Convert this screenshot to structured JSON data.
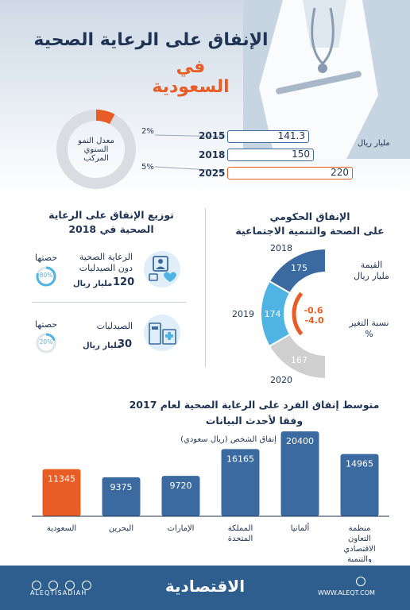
{
  "header": {
    "title_line1": "الإنفاق على الرعاية الصحية",
    "title_line2": "في السعودية"
  },
  "growth": {
    "ring_label": "معدل النمو السنوي المركب",
    "pct_top": "2%",
    "pct_bottom": "5%",
    "unit": "مليار ريال",
    "rows": [
      {
        "year": "2015",
        "value": "141.3"
      },
      {
        "year": "2018",
        "value": "150"
      },
      {
        "year": "2025",
        "value": "220"
      }
    ]
  },
  "distribution": {
    "title": "توزيع الإنفاق على الرعاية الصحية في 2018",
    "items": [
      {
        "label_line1": "الرعاية الصحية",
        "label_line2": "دون الصيدليات",
        "amount": "120",
        "unit": "مليار ريال",
        "share_label": "حصتها",
        "share": "80%",
        "share_value": 80
      },
      {
        "label_line1": "الصيدليات",
        "label_line2": "",
        "amount": "30",
        "unit": "مليار ريال",
        "share_label": "حصتها",
        "share": "20%",
        "share_value": 20
      }
    ]
  },
  "gov": {
    "title_line1": "الإنفاق الحكومي",
    "title_line2": "على الصحة والتنمية الاجتماعية",
    "value_label_line1": "القيمة",
    "value_label_line2": "مليار ريال",
    "change_label_line1": "نسبة التغير",
    "change_label_line2": "%",
    "segments": [
      {
        "year": "2018",
        "value": "175",
        "color": "#3a6aa0"
      },
      {
        "year": "2019",
        "value": "174",
        "color": "#4fb3e3"
      },
      {
        "year": "2020",
        "value": "167",
        "color": "#cfcfcf"
      }
    ],
    "changes": [
      "-0.6",
      "-4.0"
    ]
  },
  "chart_data": {
    "type": "bar",
    "title": "متوسط إنفاق الفرد على الرعاية الصحية لعام 2017 وفقا لأحدث البيانات",
    "ylabel": "إنفاق الشخص (ريال سعودي)",
    "categories": [
      "السعودية",
      "البحرين",
      "الإمارات",
      "المملكة المتحدة",
      "ألمانيا",
      "منظمة التعاون الاقتصادي والتنمية"
    ],
    "values": [
      11345,
      9375,
      9720,
      16165,
      20400,
      14965
    ],
    "value_labels": [
      "11345",
      "9375",
      "9720",
      "16165",
      "20400",
      "14965"
    ],
    "colors": {
      "highlight": "#e85d25",
      "default": "#3a6aa0"
    },
    "highlight_index": 0,
    "ylim": [
      0,
      21000
    ]
  },
  "footer": {
    "handle": "ALEQTISADIAH",
    "logo": "الاقتصادية",
    "site": "WWW.ALEQT.COM",
    "icons": [
      "instagram-icon",
      "facebook-icon",
      "twitter-icon",
      "snapchat-icon"
    ]
  }
}
